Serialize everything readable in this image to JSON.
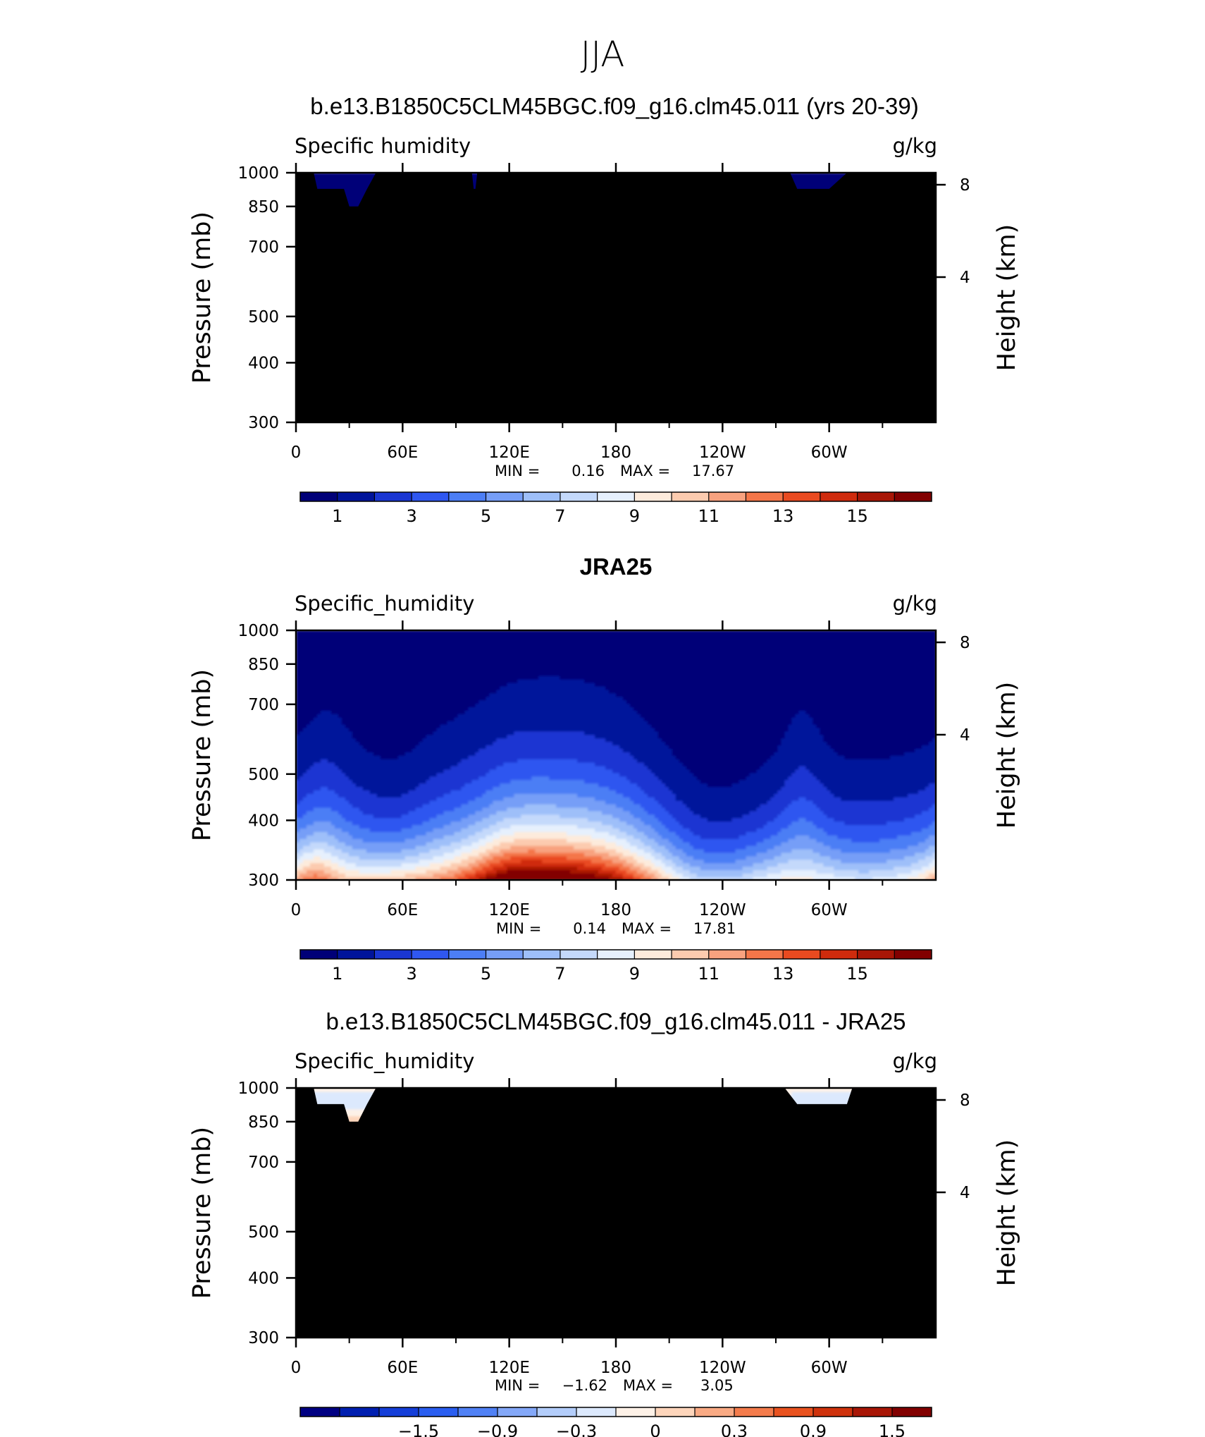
{
  "figure": {
    "season_title": "JJA"
  },
  "colors": {
    "abs_palette": [
      "#000078",
      "#00149b",
      "#1a36d2",
      "#2f57f0",
      "#4c7ef5",
      "#769ef7",
      "#9ebff9",
      "#c4d9fb",
      "#e6f0fd",
      "#fdebdc",
      "#fccbaf",
      "#f8a27f",
      "#f47649",
      "#e94a20",
      "#cf2b0d",
      "#a81606",
      "#820000"
    ],
    "diff_palette": [
      "#000082",
      "#001fb0",
      "#143ed8",
      "#2a5ef0",
      "#5081f5",
      "#84a8f8",
      "#b3cdfa",
      "#dce9fd",
      "#fdf1e7",
      "#fdd5bb",
      "#f9aa84",
      "#f47c4c",
      "#e9521f",
      "#cf320c",
      "#a81606",
      "#820000"
    ]
  },
  "chart_data": [
    {
      "type": "heatmap",
      "title": "b.e13.B1850C5CLM45BGC.f09_g16.clm45.011 (yrs 20-39)",
      "variable_label": "Specific humidity",
      "units": "g/kg",
      "ylabel": "Pressure (mb)",
      "ylabel_right": "Height (km)",
      "y_ticks": [
        "300",
        "400",
        "500",
        "700",
        "850",
        "1000"
      ],
      "y_ticks_right": [
        "8",
        "4"
      ],
      "x_ticks": [
        "0",
        "60E",
        "120E",
        "180",
        "120W",
        "60W"
      ],
      "xlim": [
        0,
        360
      ],
      "ylim": [
        1000,
        300
      ],
      "min_label": "MIN =",
      "min_value": "0.16",
      "max_label": "MAX =",
      "max_value": "17.67",
      "colorbar_labels": [
        "1",
        "3",
        "5",
        "7",
        "9",
        "11",
        "13",
        "15"
      ],
      "colorbar_levels": [
        1,
        2,
        3,
        4,
        5,
        6,
        7,
        8,
        9,
        10,
        11,
        12,
        13,
        14,
        15,
        16
      ],
      "colorbar_range": [
        0,
        17
      ],
      "surface_profile_lon": [
        0,
        10,
        12,
        18,
        27,
        30,
        35,
        40,
        45,
        65,
        90,
        99,
        100,
        101,
        102,
        110,
        150,
        200,
        250,
        278,
        282,
        285,
        300,
        310,
        360
      ],
      "surface_profile_p": [
        1000,
        1000,
        925,
        925,
        925,
        850,
        850,
        925,
        1000,
        1000,
        1000,
        1000,
        925,
        925,
        1000,
        1000,
        1000,
        1000,
        1000,
        1000,
        925,
        925,
        925,
        1000,
        1000
      ]
    },
    {
      "type": "heatmap",
      "title": "JRA25",
      "variable_label": "Specific_humidity",
      "units": "g/kg",
      "ylabel": "Pressure (mb)",
      "ylabel_right": "Height (km)",
      "y_ticks": [
        "300",
        "400",
        "500",
        "700",
        "850",
        "1000"
      ],
      "y_ticks_right": [
        "8",
        "4"
      ],
      "x_ticks": [
        "0",
        "60E",
        "120E",
        "180",
        "120W",
        "60W"
      ],
      "xlim": [
        0,
        360
      ],
      "ylim": [
        1000,
        300
      ],
      "min_label": "MIN =",
      "min_value": "0.14",
      "max_label": "MAX =",
      "max_value": "17.81",
      "colorbar_labels": [
        "1",
        "3",
        "5",
        "7",
        "9",
        "11",
        "13",
        "15"
      ],
      "colorbar_levels": [
        1,
        2,
        3,
        4,
        5,
        6,
        7,
        8,
        9,
        10,
        11,
        12,
        13,
        14,
        15,
        16
      ],
      "colorbar_range": [
        0,
        17
      ]
    },
    {
      "type": "heatmap",
      "title": "b.e13.B1850C5CLM45BGC.f09_g16.clm45.011 - JRA25",
      "variable_label": "Specific_humidity",
      "units": "g/kg",
      "ylabel": "Pressure (mb)",
      "ylabel_right": "Height (km)",
      "y_ticks": [
        "300",
        "400",
        "500",
        "700",
        "850",
        "1000"
      ],
      "y_ticks_right": [
        "8",
        "4"
      ],
      "x_ticks": [
        "0",
        "60E",
        "120E",
        "180",
        "120W",
        "60W"
      ],
      "xlim": [
        0,
        360
      ],
      "ylim": [
        1000,
        300
      ],
      "min_label": "MIN =",
      "min_value": "−1.62",
      "max_label": "MAX =",
      "max_value": "3.05",
      "colorbar_labels": [
        "−1.5",
        "−0.9",
        "−0.3",
        "0",
        "0.3",
        "0.9",
        "1.5"
      ],
      "colorbar_levels": [
        -2.1,
        -1.8,
        -1.5,
        -1.2,
        -0.9,
        -0.6,
        -0.3,
        0,
        0.3,
        0.6,
        0.9,
        1.2,
        1.5,
        1.8,
        2.1
      ],
      "colorbar_range": [
        -2.4,
        2.4
      ],
      "surface_profile_lon": [
        0,
        10,
        12,
        18,
        27,
        30,
        35,
        40,
        45,
        275,
        282,
        285,
        310,
        313,
        360
      ],
      "surface_profile_p": [
        1000,
        1000,
        925,
        925,
        925,
        850,
        850,
        925,
        1000,
        1000,
        925,
        925,
        925,
        1000,
        1000
      ]
    }
  ]
}
